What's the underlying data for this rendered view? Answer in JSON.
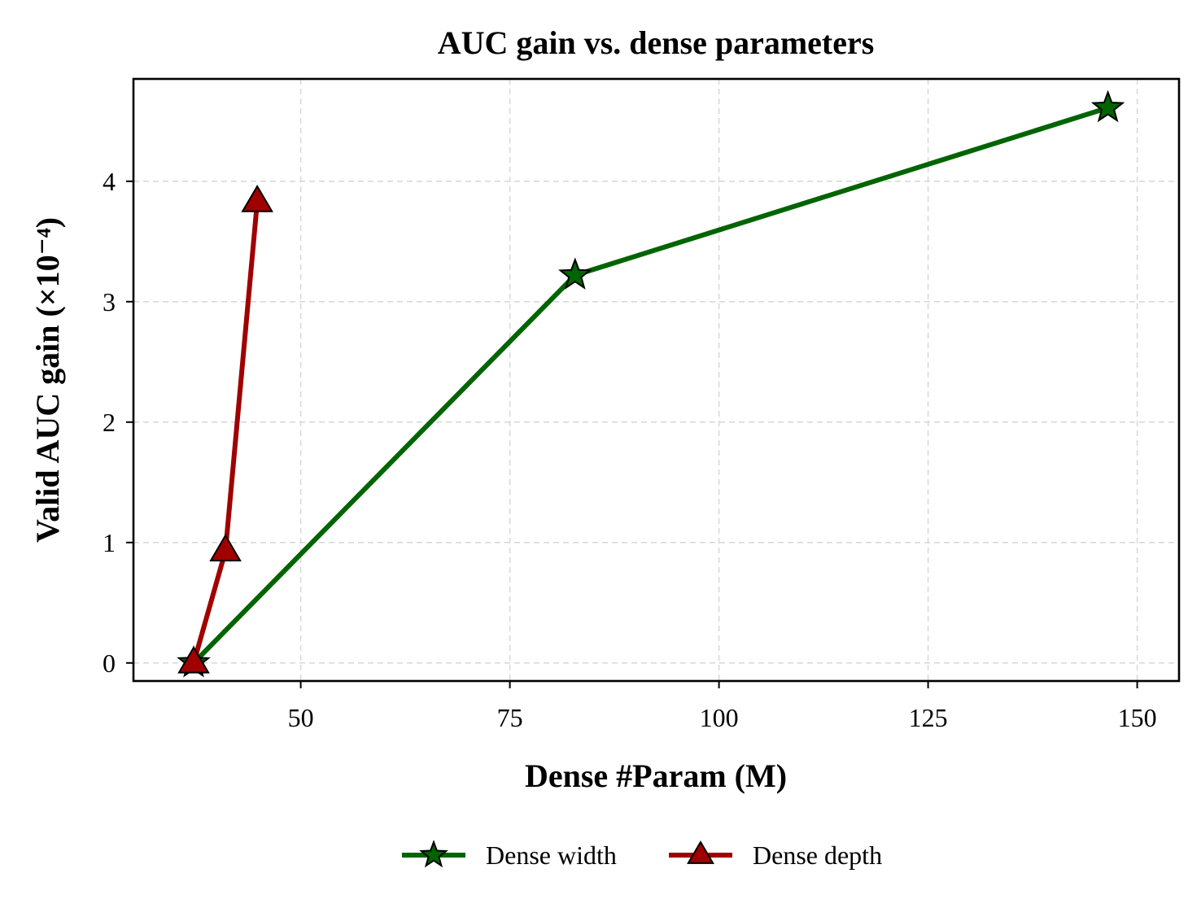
{
  "chart_data": {
    "type": "line",
    "title": "AUC gain vs. dense parameters",
    "xlabel": "Dense #Param (M)",
    "ylabel": "Valid AUC gain (×10⁻⁴)",
    "xlim": [
      30,
      155
    ],
    "ylim": [
      -0.15,
      4.85
    ],
    "xticks": [
      50,
      75,
      100,
      125,
      150
    ],
    "yticks": [
      0,
      1,
      2,
      3,
      4
    ],
    "grid": true,
    "legend_position": "bottom-center",
    "series": [
      {
        "name": "Dense width",
        "color": "#006400",
        "marker": "star",
        "x": [
          37.2,
          82.8,
          146.5
        ],
        "y": [
          0.0,
          3.22,
          4.61
        ]
      },
      {
        "name": "Dense depth",
        "color": "#a00000",
        "marker": "triangle",
        "x": [
          37.2,
          41.0,
          44.8
        ],
        "y": [
          0.0,
          0.93,
          3.83
        ]
      }
    ]
  }
}
